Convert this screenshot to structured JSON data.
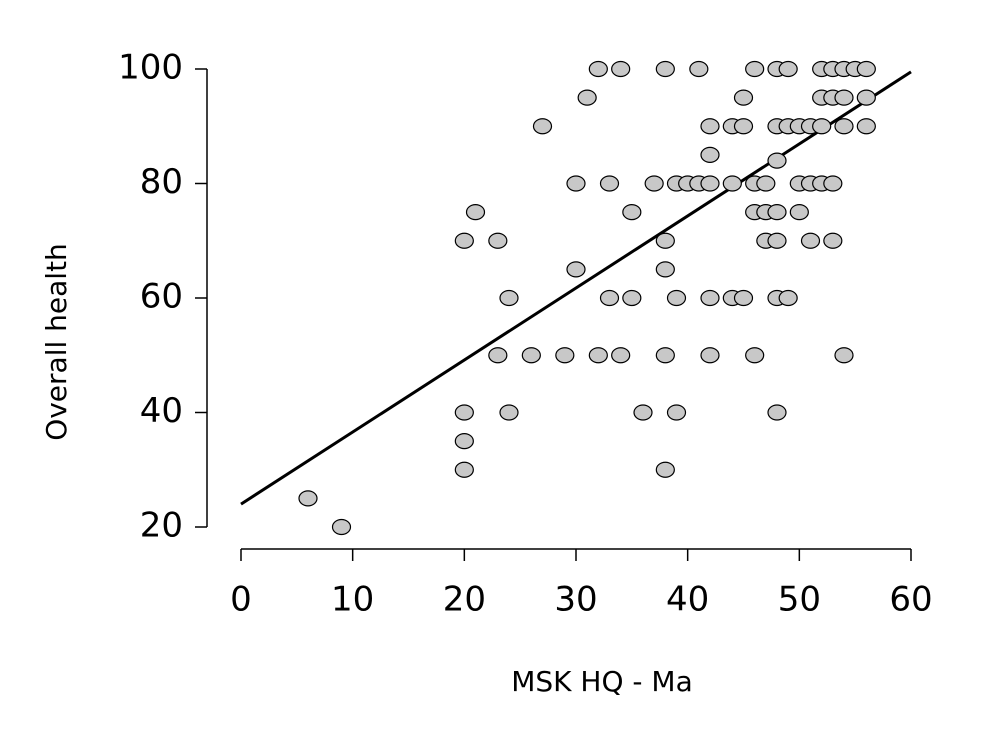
{
  "chart_data": {
    "type": "scatter",
    "xlabel": "MSK HQ - Ma",
    "ylabel": "Overall health",
    "x": [
      6,
      9,
      20,
      21,
      20,
      20,
      20,
      23,
      24,
      23,
      24,
      26,
      27,
      29,
      30,
      30,
      31,
      32,
      34,
      32,
      33,
      33,
      34,
      35,
      35,
      36,
      37,
      38,
      38,
      38,
      38,
      38,
      39,
      39,
      39,
      40,
      41,
      41,
      42,
      42,
      42,
      42,
      42,
      44,
      44,
      44,
      45,
      45,
      45,
      46,
      46,
      46,
      46,
      47,
      47,
      47,
      48,
      48,
      48,
      48,
      48,
      48,
      48,
      49,
      49,
      49,
      50,
      50,
      50,
      51,
      51,
      51,
      52,
      52,
      52,
      52,
      53,
      53,
      53,
      53,
      54,
      54,
      54,
      54,
      55,
      56,
      56,
      56
    ],
    "values": [
      25,
      20,
      70,
      75,
      40,
      35,
      30,
      70,
      60,
      50,
      40,
      50,
      90,
      50,
      80,
      65,
      95,
      100,
      100,
      50,
      80,
      60,
      50,
      75,
      60,
      40,
      80,
      100,
      70,
      65,
      50,
      30,
      80,
      60,
      40,
      80,
      100,
      80,
      90,
      85,
      80,
      60,
      50,
      90,
      80,
      60,
      95,
      90,
      60,
      100,
      80,
      75,
      50,
      80,
      75,
      70,
      100,
      90,
      84,
      75,
      70,
      60,
      40,
      100,
      90,
      60,
      90,
      80,
      75,
      90,
      80,
      70,
      100,
      95,
      90,
      80,
      100,
      95,
      80,
      70,
      100,
      95,
      90,
      50,
      100,
      100,
      95,
      90
    ],
    "color": "#c8c8c8",
    "trend": {
      "x": [
        0,
        60
      ],
      "values": [
        24,
        99.5
      ],
      "color": "#000000"
    },
    "xlim": [
      0,
      60
    ],
    "xticks": [
      0,
      10,
      20,
      30,
      40,
      50,
      60
    ],
    "ylim": [
      20,
      100
    ],
    "yticks": [
      20,
      40,
      60,
      80,
      100
    ]
  }
}
